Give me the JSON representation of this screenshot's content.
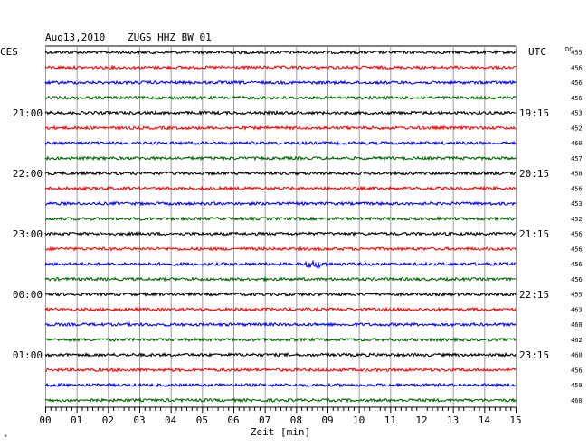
{
  "header": {
    "date": "Aug13,2010",
    "station": "ZUGS HHZ BW 01",
    "left_tz": "CES",
    "right_tz": "UTC",
    "dc_label": "DC"
  },
  "chart_data": {
    "type": "line",
    "title": "Aug13,2010   ZUGS HHZ BW 01",
    "xlabel": "Zeit [min]",
    "xlim": [
      0,
      15
    ],
    "x_ticks": [
      "00",
      "01",
      "02",
      "03",
      "04",
      "05",
      "06",
      "07",
      "08",
      "09",
      "10",
      "11",
      "12",
      "13",
      "14",
      "15"
    ],
    "trace_count": 24,
    "trace_interval_min": 15,
    "trace_colors": [
      "#000000",
      "#ff0000",
      "#0000ff",
      "#006400"
    ],
    "left_time_labels": [
      {
        "trace": 4,
        "label": "21:00"
      },
      {
        "trace": 8,
        "label": "22:00"
      },
      {
        "trace": 12,
        "label": "23:00"
      },
      {
        "trace": 16,
        "label": "00:00"
      },
      {
        "trace": 20,
        "label": "01:00"
      }
    ],
    "right_time_labels": [
      {
        "trace": 4,
        "label": "19:15"
      },
      {
        "trace": 8,
        "label": "20:15"
      },
      {
        "trace": 12,
        "label": "21:15"
      },
      {
        "trace": 16,
        "label": "22:15"
      },
      {
        "trace": 20,
        "label": "23:15"
      }
    ],
    "dc_offsets": [
      "455",
      "456",
      "456",
      "456",
      "453",
      "452",
      "460",
      "457",
      "458",
      "456",
      "453",
      "452",
      "456",
      "456",
      "456",
      "456",
      "455",
      "463",
      "460",
      "462",
      "460",
      "456",
      "459",
      "460"
    ],
    "events": [
      {
        "trace": 14,
        "start_min": 8.1,
        "end_min": 9.1,
        "amplitude": "larger"
      }
    ],
    "grid": true
  }
}
